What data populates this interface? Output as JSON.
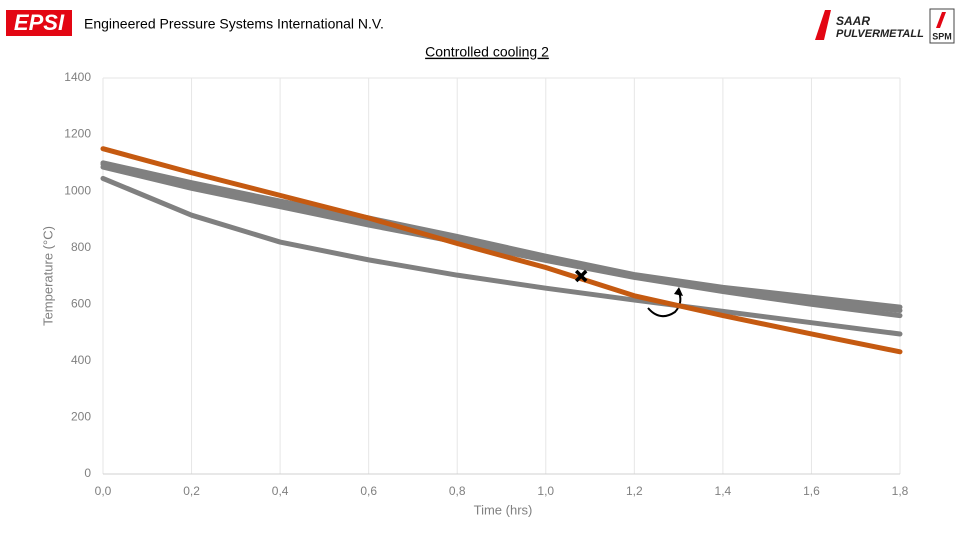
{
  "header": {
    "logo_left": "EPSI",
    "company": "Engineered Pressure Systems International N.V.",
    "logo_right_1": "SAAR",
    "logo_right_2": "PULVERMETALL",
    "logo_right_3": "SPM"
  },
  "chart_data": {
    "type": "line",
    "title": "Controlled cooling 2",
    "x_label": "Time (hrs)",
    "y_label": "Temperature (°C)",
    "x": [
      0,
      0.2,
      0.4,
      0.6,
      0.8,
      1.0,
      1.2,
      1.4,
      1.6,
      1.8
    ],
    "series": [
      {
        "color": "#808080",
        "values": [
          1045,
          915,
          820,
          757,
          703,
          657,
          615,
          575,
          535,
          495
        ]
      },
      {
        "color": "#808080",
        "values": [
          1085,
          1010,
          945,
          880,
          820,
          755,
          695,
          645,
          600,
          560
        ]
      },
      {
        "color": "#808080",
        "values": [
          1095,
          1020,
          955,
          893,
          830,
          763,
          700,
          652,
          612,
          578
        ]
      },
      {
        "color": "#808080",
        "values": [
          1100,
          1030,
          965,
          905,
          840,
          770,
          705,
          660,
          625,
          590
        ]
      },
      {
        "color": "#c55a11",
        "values": [
          1150,
          1065,
          985,
          905,
          815,
          730,
          630,
          560,
          495,
          432
        ]
      }
    ],
    "marker": {
      "x": 1.08,
      "y": 700
    },
    "xlim": [
      0,
      1.8
    ],
    "xticks": [
      {
        "value": 0,
        "label": "0,0"
      },
      {
        "value": 0.2,
        "label": "0,2"
      },
      {
        "value": 0.4,
        "label": "0,4"
      },
      {
        "value": 0.6,
        "label": "0,6"
      },
      {
        "value": 0.8,
        "label": "0,8"
      },
      {
        "value": 1.0,
        "label": "1,0"
      },
      {
        "value": 1.2,
        "label": "1,2"
      },
      {
        "value": 1.4,
        "label": "1,4"
      },
      {
        "value": 1.6,
        "label": "1,6"
      },
      {
        "value": 1.8,
        "label": "1,8"
      }
    ],
    "ylim": [
      0,
      1400
    ],
    "yticks": [
      0,
      200,
      400,
      600,
      800,
      1000,
      1200,
      1400
    ],
    "grid": "x"
  }
}
